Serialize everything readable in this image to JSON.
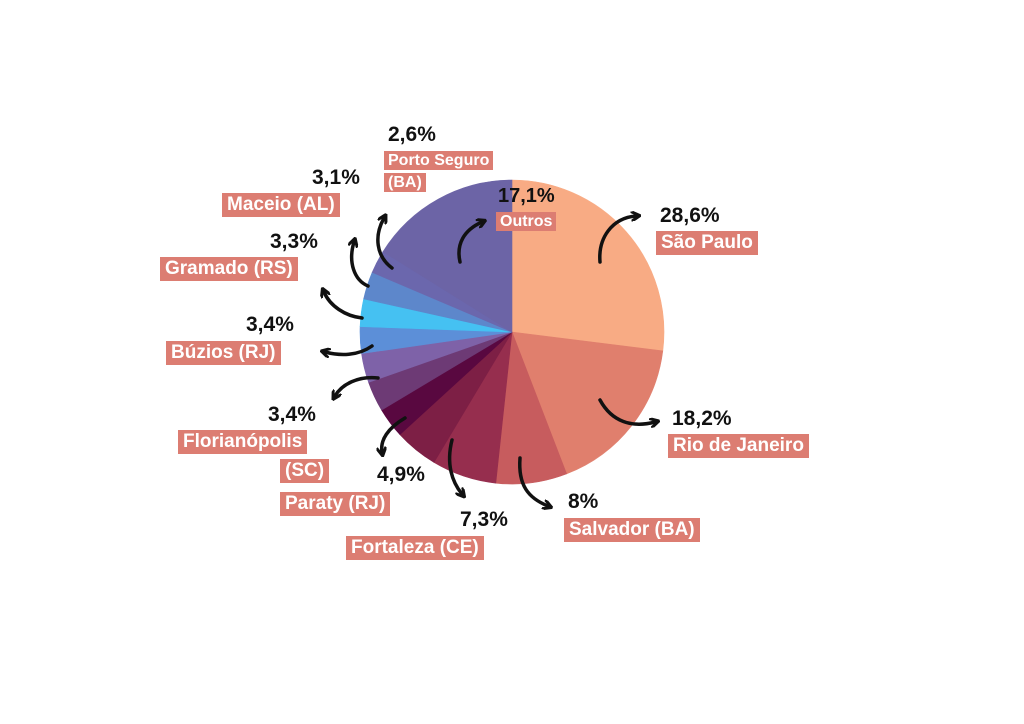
{
  "chart_data": {
    "type": "pie",
    "slices": [
      {
        "label": "São Paulo",
        "value": 28.6,
        "display": "28,6%",
        "color": "#f8ab84"
      },
      {
        "label": "Rio de Janeiro",
        "value": 18.2,
        "display": "18,2%",
        "color": "#e07f6d"
      },
      {
        "label": "Salvador (BA)",
        "value": 8,
        "display": "8%",
        "color": "#c75c5e"
      },
      {
        "label": "Fortaleza (CE)",
        "value": 7.3,
        "display": "7,3%",
        "color": "#962e4e"
      },
      {
        "label": "Paraty (RJ)",
        "value": 4.9,
        "display": "4,9%",
        "color": "#7d1f45"
      },
      {
        "label": "Florianópolis",
        "label2": "(SC)",
        "value": 3.4,
        "display": "3,4%",
        "color": "#590840"
      },
      {
        "label": "Búzios (RJ)",
        "value": 3.4,
        "display": "3,4%",
        "color": "#6d3a75"
      },
      {
        "label": "Gramado (RS)",
        "value": 3.3,
        "display": "3,3%",
        "color": "#7e62a8"
      },
      {
        "label": "",
        "value": 3.0,
        "display": "",
        "color": "#5c8fd8"
      },
      {
        "label": "",
        "value": 3.1,
        "display": "",
        "color": "#45c1f2"
      },
      {
        "label": "Maceio (AL)",
        "value": 3.1,
        "display": "3,1%",
        "color": "#5d87cb"
      },
      {
        "label": "Porto Seguro",
        "label2": "(BA)",
        "value": 2.6,
        "display": "2,6%",
        "color": "#6b67ad"
      },
      {
        "label": "Outros",
        "value": 17.1,
        "display": "17,1%",
        "color": "#6c64a6"
      }
    ],
    "label_color": "#dc7d72"
  }
}
